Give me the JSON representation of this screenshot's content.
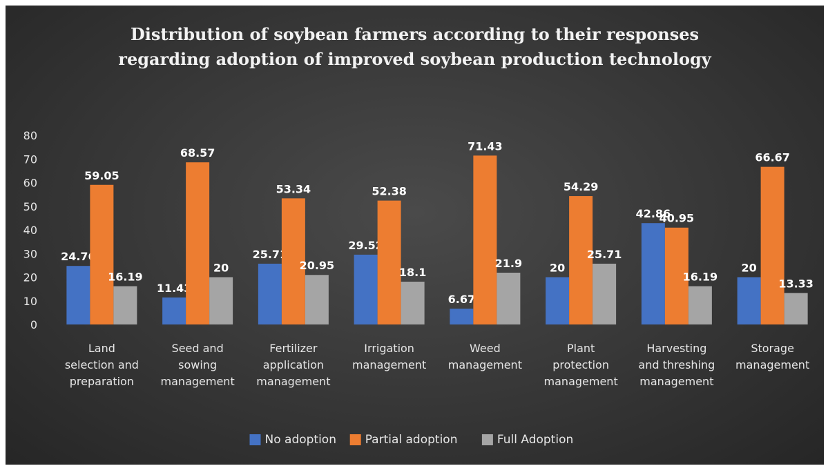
{
  "chart_data": {
    "type": "bar",
    "title": "Distribution of soybean farmers according to their responses regarding adoption of improved soybean production technology",
    "title_lines": [
      "Distribution of soybean farmers according to their responses",
      "regarding adoption of improved soybean production technology"
    ],
    "categories": [
      "Land selection and preparation",
      "Seed and sowing management",
      "Fertilizer application management",
      "Irrigation management",
      "Weed management",
      "Plant protection management",
      "Harvesting and threshing management",
      "Storage management"
    ],
    "category_lines": [
      [
        "Land",
        "selection and",
        "preparation"
      ],
      [
        "Seed and",
        "sowing",
        "management"
      ],
      [
        "Fertilizer",
        "application",
        "management"
      ],
      [
        "Irrigation",
        "management"
      ],
      [
        "Weed",
        "management"
      ],
      [
        "Plant",
        "protection",
        "management"
      ],
      [
        "Harvesting",
        "and threshing",
        "management"
      ],
      [
        "Storage",
        "management"
      ]
    ],
    "series": [
      {
        "name": "No adoption",
        "color": "#4472C4",
        "values": [
          24.76,
          11.43,
          25.71,
          29.52,
          6.67,
          20,
          42.86,
          20
        ]
      },
      {
        "name": "Partial adoption",
        "color": "#ED7D31",
        "values": [
          59.05,
          68.57,
          53.34,
          52.38,
          71.43,
          54.29,
          40.95,
          66.67
        ]
      },
      {
        "name": "Full Adoption",
        "color": "#A5A5A5",
        "values": [
          16.19,
          20,
          20.95,
          18.1,
          21.9,
          25.71,
          16.19,
          13.33
        ]
      }
    ],
    "ylim": [
      0,
      80
    ],
    "yticks": [
      0,
      10,
      20,
      30,
      40,
      50,
      60,
      70,
      80
    ],
    "grid": false,
    "legend": "bottom",
    "data_labels": true
  }
}
